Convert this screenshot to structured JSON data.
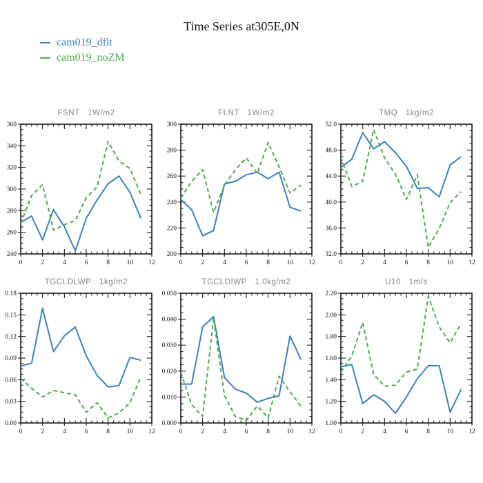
{
  "title": "Time Series at305E,0N",
  "legend": {
    "items": [
      {
        "label": "cam019_dflt",
        "color": "#3780c2",
        "line_style": "solid",
        "icon": "line-swatch-icon"
      },
      {
        "label": "cam019_noZM",
        "color": "#4cab4c",
        "line_style": "dashed",
        "icon": "line-swatch-icon"
      }
    ]
  },
  "colors": {
    "axis": "#1a1a1a",
    "plot_title_gray": "#858585",
    "series_blue": "#3780c2",
    "series_green": "#4cab4c"
  },
  "chart_data": [
    {
      "id": "fsnt",
      "type": "line",
      "title": "FSNT",
      "units": "1W/m2",
      "x": [
        0,
        1,
        2,
        3,
        4,
        5,
        6,
        7,
        8,
        9,
        10,
        11
      ],
      "xlim": [
        0,
        12
      ],
      "xticks": [
        0,
        2,
        4,
        6,
        8,
        10,
        12
      ],
      "ylim": [
        240,
        360
      ],
      "yticks": [
        240,
        260,
        280,
        300,
        320,
        340,
        360
      ],
      "ytick_labels": [
        "240",
        "260",
        "280",
        "300",
        "320",
        "340",
        "360"
      ],
      "grid": false,
      "series": [
        {
          "name": "cam019_dflt",
          "style": "solid",
          "values": [
            269,
            275,
            253,
            281,
            265,
            243,
            273,
            290,
            305,
            312,
            297,
            273
          ]
        },
        {
          "name": "cam019_noZM",
          "style": "dashed",
          "values": [
            268,
            294,
            304,
            262,
            267,
            271,
            292,
            302,
            344,
            326,
            319,
            295
          ]
        }
      ]
    },
    {
      "id": "flnt",
      "type": "line",
      "title": "FLNT",
      "units": "1W/m2",
      "x": [
        0,
        1,
        2,
        3,
        4,
        5,
        6,
        7,
        8,
        9,
        10,
        11
      ],
      "xlim": [
        0,
        12
      ],
      "xticks": [
        0,
        2,
        4,
        6,
        8,
        10,
        12
      ],
      "ylim": [
        200,
        300
      ],
      "yticks": [
        200,
        220,
        240,
        260,
        280,
        300
      ],
      "ytick_labels": [
        "200",
        "220",
        "240",
        "260",
        "280",
        "300"
      ],
      "grid": false,
      "series": [
        {
          "name": "cam019_dflt",
          "style": "solid",
          "values": [
            242,
            234,
            214,
            218,
            254,
            256,
            261,
            263,
            258,
            263,
            236,
            233
          ]
        },
        {
          "name": "cam019_noZM",
          "style": "dashed",
          "values": [
            243,
            256,
            265,
            232,
            253,
            265,
            274,
            262,
            286,
            267,
            247,
            253
          ]
        }
      ]
    },
    {
      "id": "tmq",
      "type": "line",
      "title": "TMQ",
      "units": "1kg/m2",
      "x": [
        0,
        1,
        2,
        3,
        4,
        5,
        6,
        7,
        8,
        9,
        10,
        11
      ],
      "xlim": [
        0,
        12
      ],
      "xticks": [
        0,
        2,
        4,
        6,
        8,
        10,
        12
      ],
      "ylim": [
        32,
        52
      ],
      "yticks": [
        32,
        36,
        40,
        44,
        48,
        52
      ],
      "ytick_labels": [
        "32.0",
        "36.0",
        "40.0",
        "44.0",
        "48.0",
        "52.0"
      ],
      "grid": false,
      "series": [
        {
          "name": "cam019_dflt",
          "style": "solid",
          "values": [
            45.3,
            46.6,
            50.7,
            48.2,
            49.3,
            47.6,
            45.5,
            42.1,
            42.2,
            40.8,
            45.7,
            47.0
          ]
        },
        {
          "name": "cam019_noZM",
          "style": "dashed",
          "values": [
            46.9,
            42.4,
            43.2,
            51.2,
            46.8,
            44.3,
            40.4,
            44.2,
            33.0,
            35.9,
            39.9,
            41.6
          ]
        }
      ]
    },
    {
      "id": "tgcldlwp",
      "type": "line",
      "title": "TGCLDLWP",
      "units": "1kg/m2",
      "x": [
        0,
        1,
        2,
        3,
        4,
        5,
        6,
        7,
        8,
        9,
        10,
        11
      ],
      "xlim": [
        0,
        12
      ],
      "xticks": [
        0,
        2,
        4,
        6,
        8,
        10,
        12
      ],
      "ylim": [
        0,
        0.18
      ],
      "yticks": [
        0,
        0.03,
        0.06,
        0.09,
        0.12,
        0.15,
        0.18
      ],
      "ytick_labels": [
        "0.00",
        "0.03",
        "0.06",
        "0.09",
        "0.12",
        "0.15",
        "0.18"
      ],
      "grid": false,
      "series": [
        {
          "name": "cam019_dflt",
          "style": "solid",
          "values": [
            0.079,
            0.083,
            0.159,
            0.099,
            0.121,
            0.133,
            0.093,
            0.066,
            0.05,
            0.052,
            0.091,
            0.087
          ]
        },
        {
          "name": "cam019_noZM",
          "style": "dashed",
          "values": [
            0.062,
            0.048,
            0.036,
            0.045,
            0.042,
            0.039,
            0.015,
            0.028,
            0.007,
            0.014,
            0.028,
            0.064
          ]
        }
      ]
    },
    {
      "id": "tgcldiwp",
      "type": "line",
      "title": "TGCLDIWP",
      "units": "1.0kg/m2",
      "x": [
        0,
        1,
        2,
        3,
        4,
        5,
        6,
        7,
        8,
        9,
        10,
        11
      ],
      "xlim": [
        0,
        12
      ],
      "xticks": [
        0,
        2,
        4,
        6,
        8,
        10,
        12
      ],
      "ylim": [
        0,
        0.05
      ],
      "yticks": [
        0,
        0.01,
        0.02,
        0.03,
        0.04,
        0.05
      ],
      "ytick_labels": [
        "0.000",
        "0.010",
        "0.020",
        "0.030",
        "0.040",
        "0.050"
      ],
      "grid": false,
      "series": [
        {
          "name": "cam019_dflt",
          "style": "solid",
          "values": [
            0.015,
            0.015,
            0.037,
            0.041,
            0.0175,
            0.013,
            0.0115,
            0.008,
            0.0095,
            0.0105,
            0.0335,
            0.0245
          ]
        },
        {
          "name": "cam019_noZM",
          "style": "dashed",
          "values": [
            0.0195,
            0.007,
            0.0025,
            0.0405,
            0.0105,
            0.0025,
            0.001,
            0.0065,
            0.002,
            0.018,
            0.012,
            0.0065
          ]
        }
      ]
    },
    {
      "id": "u10",
      "type": "line",
      "title": "U10",
      "units": "1m/s",
      "x": [
        0,
        1,
        2,
        3,
        4,
        5,
        6,
        7,
        8,
        9,
        10,
        11
      ],
      "xlim": [
        0,
        12
      ],
      "xticks": [
        0,
        2,
        4,
        6,
        8,
        10,
        12
      ],
      "ylim": [
        1.0,
        2.2
      ],
      "yticks": [
        1.0,
        1.2,
        1.4,
        1.6,
        1.8,
        2.0,
        2.2
      ],
      "ytick_labels": [
        "1.00",
        "1.20",
        "1.40",
        "1.60",
        "1.80",
        "2.00",
        "2.20"
      ],
      "grid": false,
      "series": [
        {
          "name": "cam019_dflt",
          "style": "solid",
          "values": [
            1.52,
            1.54,
            1.18,
            1.26,
            1.2,
            1.09,
            1.24,
            1.41,
            1.53,
            1.53,
            1.1,
            1.31
          ]
        },
        {
          "name": "cam019_noZM",
          "style": "dashed",
          "values": [
            1.47,
            1.62,
            1.93,
            1.45,
            1.34,
            1.35,
            1.47,
            1.5,
            2.17,
            1.89,
            1.74,
            1.92
          ]
        }
      ]
    }
  ],
  "layout": {
    "rows": 2,
    "cols": 3,
    "col_lefts": [
      -2,
      230,
      462
    ],
    "row_tops": [
      152,
      397
    ]
  }
}
